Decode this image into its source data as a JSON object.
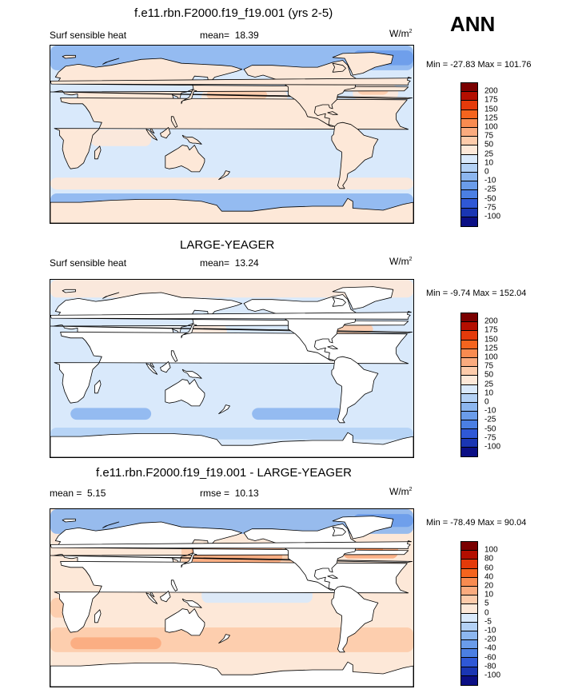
{
  "season": "ANN",
  "panels": [
    {
      "title": "f.e11.rbn.F2000.f19_f19.001 (yrs 2-5)",
      "left": "Surf sensible heat",
      "mean_label": "mean=",
      "mean": "18.39",
      "unit": "W/m",
      "unit_sup": "2",
      "minmax": "Min = -27.83 Max = 101.76",
      "land_filled": true,
      "levels": [
        "200",
        "175",
        "150",
        "125",
        "100",
        "75",
        "50",
        "25",
        "10",
        "0",
        "-10",
        "-25",
        "-50",
        "-75",
        "-100"
      ],
      "colors": [
        "#7a0000",
        "#b40e00",
        "#e43a0a",
        "#f5641e",
        "#f98b50",
        "#fbab7e",
        "#fdcbaa",
        "#fde8d8",
        "#d9e9fb",
        "#b3d1f5",
        "#8cb6ef",
        "#6a9cea",
        "#4b7fe3",
        "#2f58d6",
        "#1a36b3",
        "#0b0f85"
      ]
    },
    {
      "title": "LARGE-YEAGER",
      "left": "Surf sensible heat",
      "mean_label": "mean=",
      "mean": "13.24",
      "unit": "W/m",
      "unit_sup": "2",
      "minmax": "Min = -9.74 Max = 152.04",
      "land_filled": false,
      "levels": [
        "200",
        "175",
        "150",
        "125",
        "100",
        "75",
        "50",
        "25",
        "10",
        "0",
        "-10",
        "-25",
        "-50",
        "-75",
        "-100"
      ],
      "colors": [
        "#7a0000",
        "#b40e00",
        "#e43a0a",
        "#f5641e",
        "#f98b50",
        "#fbab7e",
        "#fdcbaa",
        "#fde8d8",
        "#d9e9fb",
        "#b3d1f5",
        "#8cb6ef",
        "#6a9cea",
        "#4b7fe3",
        "#2f58d6",
        "#1a36b3",
        "#0b0f85"
      ]
    },
    {
      "title": "f.e11.rbn.F2000.f19_f19.001 - LARGE-YEAGER",
      "left": "mean =",
      "mean_label": "rmse =",
      "left_value": "5.15",
      "mean": "10.13",
      "unit": "W/m",
      "unit_sup": "2",
      "minmax": "Min = -78.49 Max = 90.04",
      "land_filled": false,
      "levels": [
        "100",
        "80",
        "60",
        "40",
        "20",
        "10",
        "5",
        "0",
        "-5",
        "-10",
        "-20",
        "-40",
        "-60",
        "-80",
        "-100"
      ],
      "colors": [
        "#7a0000",
        "#b40e00",
        "#e43a0a",
        "#f5641e",
        "#f98b50",
        "#fbab7e",
        "#fdcbaa",
        "#fde8d8",
        "#d9e9fb",
        "#b3d1f5",
        "#8cb6ef",
        "#6a9cea",
        "#4b7fe3",
        "#2f58d6",
        "#1a36b3",
        "#0b0f85"
      ]
    }
  ]
}
